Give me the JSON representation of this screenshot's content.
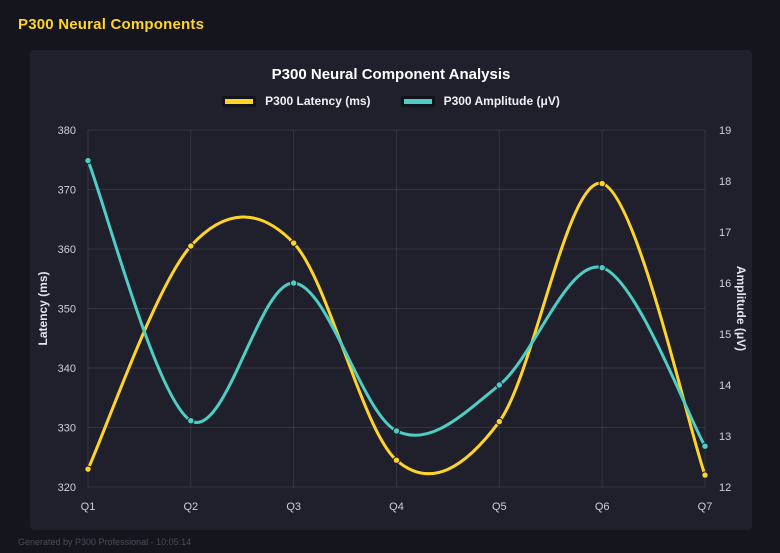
{
  "header": {
    "title": "P300 Neural Components",
    "color": "#FFD428"
  },
  "footer": {
    "text": "Generated by P300 Professional - 10:05:14"
  },
  "chart_data": {
    "type": "line",
    "title": "P300 Neural Component Analysis",
    "categories": [
      "Q1",
      "Q2",
      "Q3",
      "Q4",
      "Q5",
      "Q6",
      "Q7"
    ],
    "series": [
      {
        "name": "P300 Latency (ms)",
        "axis": "left",
        "color": "#FFD428",
        "values": [
          323,
          360.5,
          361,
          324.5,
          331,
          371,
          322
        ]
      },
      {
        "name": "P300 Amplitude (μV)",
        "axis": "right",
        "color": "#4ECDC4",
        "values": [
          18.4,
          13.3,
          16.0,
          13.1,
          14.0,
          16.3,
          12.8
        ]
      }
    ],
    "left_axis": {
      "label": "Latency (ms)",
      "min": 320,
      "max": 380,
      "step": 10
    },
    "right_axis": {
      "label": "Amplitude (μV)",
      "min": 12,
      "max": 19,
      "step": 1
    },
    "grid": true,
    "legend_position": "top",
    "line_smoothing": "spline"
  }
}
